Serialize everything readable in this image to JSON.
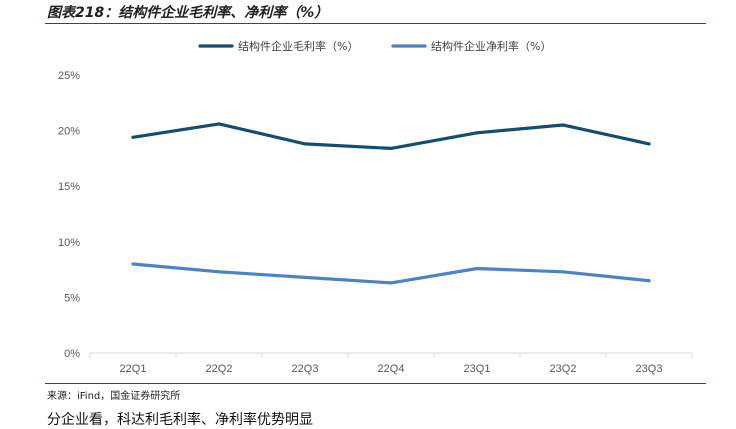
{
  "figure": {
    "title": "图表218：结构件企业毛利率、净利率（%）",
    "source": "来源：iFind，国金证券研究所",
    "following_text": "分企业看，科达利毛利率、净利率优势明显"
  },
  "chart_data": {
    "type": "line",
    "categories": [
      "22Q1",
      "22Q2",
      "22Q3",
      "22Q4",
      "23Q1",
      "23Q2",
      "23Q3"
    ],
    "ylim": [
      0,
      25
    ],
    "yticks": [
      "0%",
      "5%",
      "10%",
      "15%",
      "20%",
      "25%"
    ],
    "grid": false,
    "legend_position": "top-center",
    "series": [
      {
        "name": "结构件企业毛利率（%）",
        "color": "#124e72",
        "values": [
          19.4,
          20.6,
          18.8,
          18.4,
          19.8,
          20.5,
          18.8
        ]
      },
      {
        "name": "结构件企业净利率（%）",
        "color": "#4a84c4",
        "values": [
          8.0,
          7.3,
          6.8,
          6.3,
          7.6,
          7.3,
          6.5
        ]
      }
    ]
  }
}
